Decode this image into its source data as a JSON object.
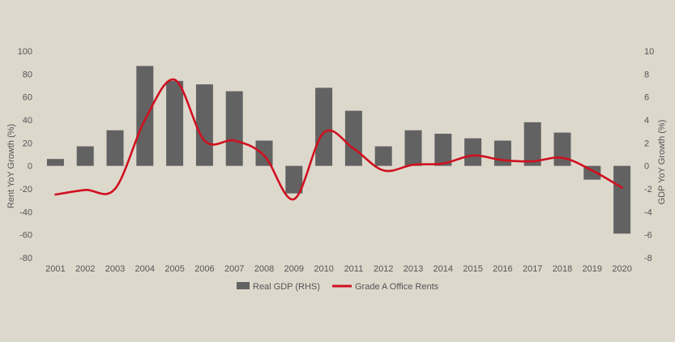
{
  "chart_data": {
    "type": "bar",
    "categories": [
      "2001",
      "2002",
      "2003",
      "2004",
      "2005",
      "2006",
      "2007",
      "2008",
      "2009",
      "2010",
      "2011",
      "2012",
      "2013",
      "2014",
      "2015",
      "2016",
      "2017",
      "2018",
      "2019",
      "2020"
    ],
    "ylabel": "Rent YoY Growth (%)",
    "y2label": "GDP YoY Growth (%)",
    "ylim": [
      -80,
      100
    ],
    "y2lim": [
      -8,
      10
    ],
    "yticks": [
      -80,
      -60,
      -40,
      -20,
      0,
      20,
      40,
      60,
      80,
      100
    ],
    "y2ticks": [
      -8,
      -6,
      -4,
      -2,
      0,
      2,
      4,
      6,
      8,
      10
    ],
    "grid": false,
    "legend_position": "bottom",
    "series": [
      {
        "name": "Real GDP (RHS)",
        "type": "bar",
        "axis": "right",
        "color": "#626262",
        "values": [
          0.6,
          1.7,
          3.1,
          8.7,
          7.4,
          7.1,
          6.5,
          2.2,
          -2.4,
          6.8,
          4.8,
          1.7,
          3.1,
          2.8,
          2.4,
          2.2,
          3.8,
          2.9,
          -1.2,
          -5.9
        ]
      },
      {
        "name": "Grade A Office Rents",
        "type": "line",
        "axis": "left",
        "color": "#d0101f",
        "values": [
          -25,
          -21,
          -20,
          40,
          75,
          22,
          22,
          9,
          -29,
          29,
          15,
          -4,
          1,
          2,
          9,
          5,
          4,
          7,
          -4,
          -19
        ]
      }
    ]
  }
}
